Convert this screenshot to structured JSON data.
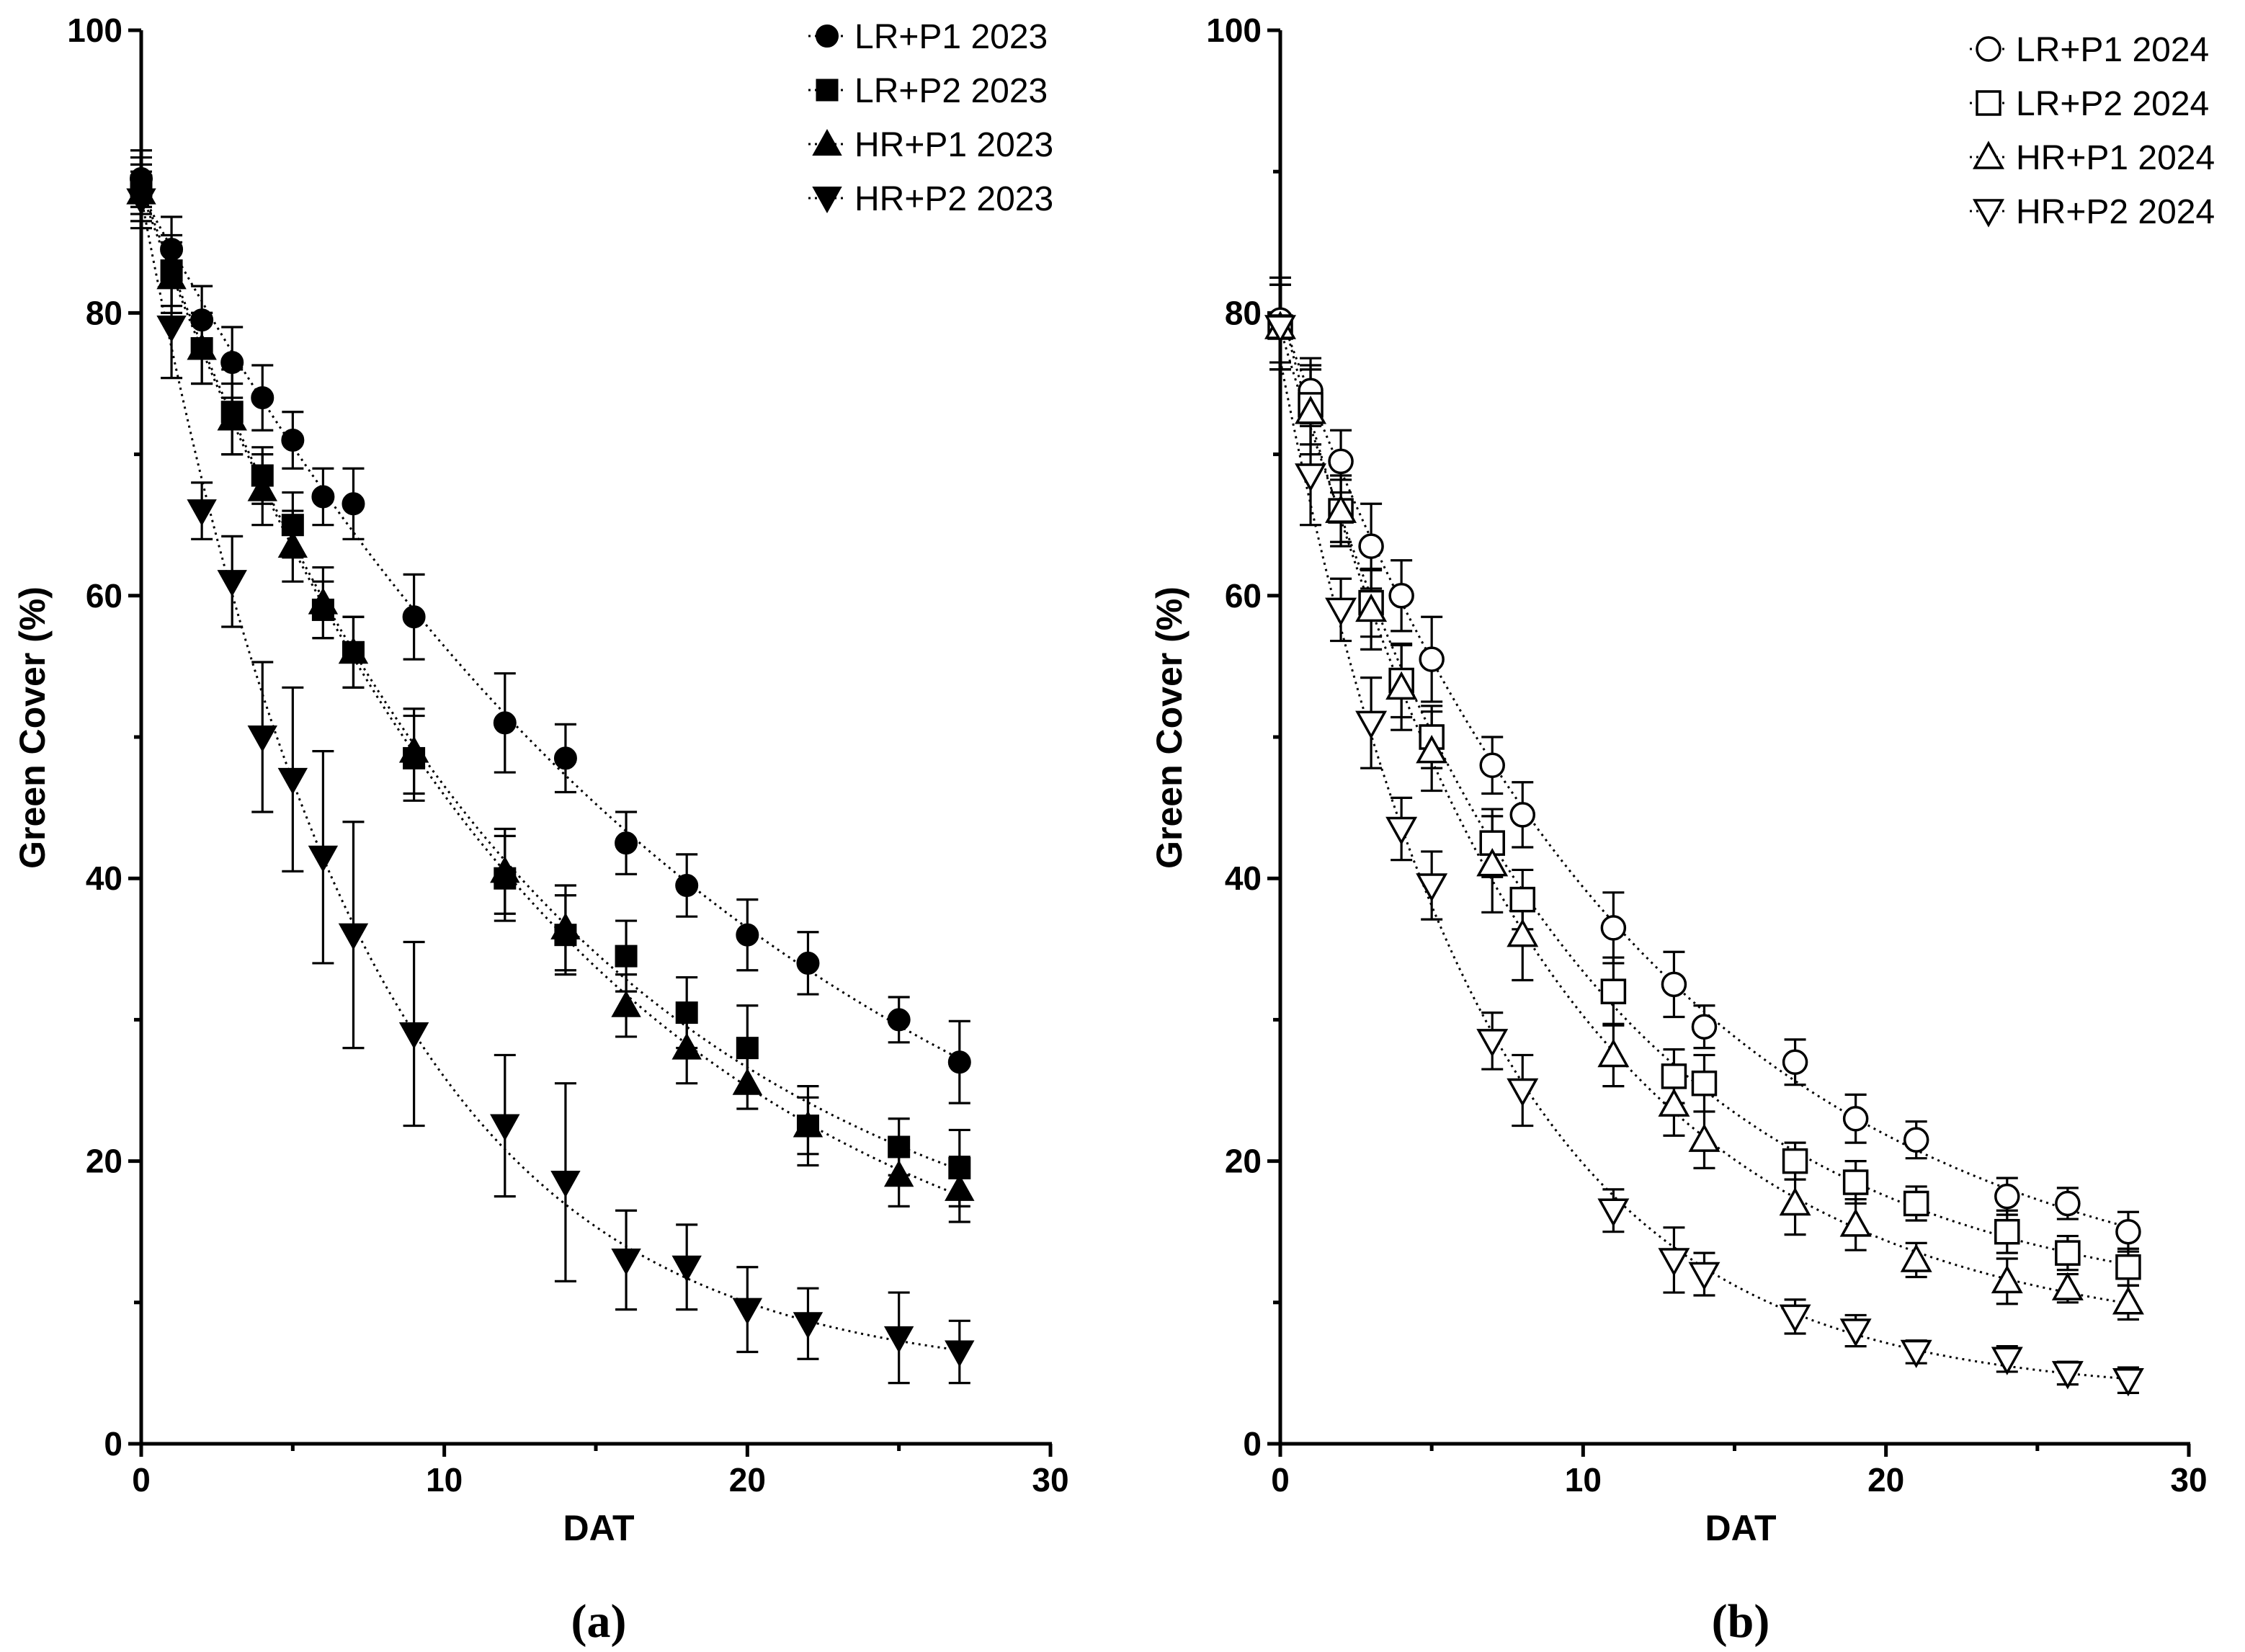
{
  "chart_data": [
    {
      "type": "scatter",
      "panel_label": "(a)",
      "xlabel": "DAT",
      "ylabel": "Green Cover (%)",
      "xlim": [
        0,
        30
      ],
      "ylim": [
        0,
        100
      ],
      "xticks": [
        "0",
        "10",
        "20",
        "30"
      ],
      "yticks": [
        "0",
        "20",
        "40",
        "60",
        "80",
        "100"
      ],
      "legend_position": "top-right",
      "fit_lines": "dotted",
      "series": [
        {
          "name": "LR+P1 2023",
          "marker": "circle",
          "filled": true,
          "x": [
            0,
            1,
            2,
            3,
            4,
            5,
            6,
            7,
            9,
            12,
            14,
            16,
            18,
            20,
            22,
            25,
            27
          ],
          "y": [
            89.5,
            84.5,
            79.5,
            76.5,
            74,
            71,
            67,
            66.5,
            58.5,
            51,
            48.5,
            42.5,
            39.5,
            36,
            34,
            30,
            27
          ],
          "err": [
            2,
            2.3,
            2.4,
            2.5,
            2.3,
            2,
            2,
            2.5,
            3,
            3.5,
            2.4,
            2.2,
            2.2,
            2.5,
            2.2,
            1.6,
            2.9
          ]
        },
        {
          "name": "LR+P2 2023",
          "marker": "square",
          "filled": true,
          "x": [
            0,
            1,
            2,
            3,
            4,
            5,
            6,
            7,
            9,
            12,
            14,
            16,
            18,
            20,
            22,
            25,
            27
          ],
          "y": [
            89,
            83,
            77.5,
            73,
            68.5,
            65,
            59,
            56,
            48.5,
            40,
            36,
            34.5,
            30.5,
            28,
            22.5,
            21,
            19.5
          ],
          "err": [
            2,
            2.5,
            2.5,
            3,
            2,
            2.3,
            2,
            2.5,
            3,
            3,
            2.8,
            2.5,
            2.5,
            3,
            2.8,
            2,
            2.7
          ]
        },
        {
          "name": "HR+P1 2023",
          "marker": "triangle-up",
          "filled": true,
          "x": [
            0,
            1,
            2,
            3,
            4,
            5,
            6,
            7,
            9,
            12,
            14,
            16,
            18,
            20,
            22,
            25,
            27
          ],
          "y": [
            88.5,
            82.5,
            77.5,
            72.5,
            67.5,
            63.5,
            59.5,
            56,
            49,
            40.5,
            36.5,
            31,
            28,
            25.5,
            22.5,
            19,
            18
          ],
          "err": [
            2,
            2.5,
            2.5,
            2.5,
            2.5,
            2.5,
            2.5,
            2.5,
            3,
            3,
            3,
            2.2,
            2.5,
            1.8,
            2,
            2.2,
            2.3
          ]
        },
        {
          "name": "HR+P2 2023",
          "marker": "triangle-down",
          "filled": true,
          "x": [
            0,
            1,
            2,
            3,
            4,
            5,
            6,
            7,
            9,
            12,
            14,
            16,
            18,
            20,
            22,
            25,
            27
          ],
          "y": [
            88,
            79,
            66,
            61,
            50,
            47,
            41.5,
            36,
            29,
            22.5,
            18.5,
            13,
            12.5,
            9.5,
            8.5,
            7.5,
            6.5
          ],
          "err": [
            2,
            3.6,
            2,
            3.2,
            5.3,
            6.5,
            7.5,
            8,
            6.5,
            5,
            7,
            3.5,
            3,
            3,
            2.5,
            3.2,
            2.2
          ]
        }
      ]
    },
    {
      "type": "scatter",
      "panel_label": "(b)",
      "xlabel": "DAT",
      "ylabel": "Green Cover (%)",
      "xlim": [
        0,
        30
      ],
      "ylim": [
        0,
        100
      ],
      "xticks": [
        "0",
        "10",
        "20",
        "30"
      ],
      "yticks": [
        "0",
        "20",
        "40",
        "60",
        "80",
        "100"
      ],
      "legend_position": "top-right",
      "fit_lines": "dotted",
      "series": [
        {
          "name": "LR+P1 2024",
          "marker": "circle",
          "filled": false,
          "x": [
            0,
            1,
            2,
            3,
            4,
            5,
            7,
            8,
            11,
            13,
            14,
            17,
            19,
            21,
            24,
            26,
            28
          ],
          "y": [
            79.5,
            74.5,
            69.5,
            63.5,
            60,
            55.5,
            48,
            44.5,
            36.5,
            32.5,
            29.5,
            27,
            23,
            21.5,
            17.5,
            17,
            15
          ],
          "err": [
            3,
            2.3,
            2.2,
            3,
            2.5,
            3,
            2,
            2.3,
            2.5,
            2.3,
            1.5,
            1.6,
            1.7,
            1.3,
            1.3,
            1.1,
            1.4
          ]
        },
        {
          "name": "LR+P2 2024",
          "marker": "square",
          "filled": false,
          "x": [
            0,
            1,
            2,
            3,
            4,
            5,
            7,
            8,
            11,
            13,
            14,
            17,
            19,
            21,
            24,
            26,
            28
          ],
          "y": [
            79,
            73.5,
            66,
            59.5,
            54,
            50,
            42.5,
            38.5,
            32,
            26,
            25.5,
            20,
            18.5,
            17,
            15,
            13.5,
            12.5
          ],
          "err": [
            3,
            2.8,
            2.2,
            2.4,
            2.6,
            2.2,
            2.4,
            2.1,
            2.4,
            1.9,
            2,
            1.3,
            1.5,
            1.2,
            1.5,
            1.2,
            1.3
          ]
        },
        {
          "name": "HR+P1 2024",
          "marker": "triangle-up",
          "filled": false,
          "x": [
            0,
            1,
            2,
            3,
            4,
            5,
            7,
            8,
            11,
            13,
            14,
            17,
            19,
            21,
            24,
            26,
            28
          ],
          "y": [
            79,
            73,
            66,
            59,
            53.5,
            49,
            41,
            36,
            27.5,
            24,
            21.5,
            17,
            15.5,
            13,
            11.5,
            11,
            10
          ],
          "err": [
            3,
            3,
            2.5,
            2.8,
            3,
            2.8,
            3.4,
            3.2,
            2.2,
            2.2,
            2,
            2.2,
            1.8,
            1.2,
            1.6,
            1,
            1.2
          ]
        },
        {
          "name": "HR+P2 2024",
          "marker": "triangle-down",
          "filled": false,
          "x": [
            0,
            1,
            2,
            3,
            4,
            5,
            7,
            8,
            11,
            13,
            14,
            17,
            19,
            21,
            24,
            26,
            28
          ],
          "y": [
            79,
            68.5,
            59,
            51,
            43.5,
            39.5,
            28.5,
            25,
            16.5,
            13,
            12,
            9,
            8,
            6.5,
            6,
            5,
            4.5
          ],
          "err": [
            3,
            3.5,
            2.2,
            3.2,
            2.2,
            2.4,
            2,
            2.5,
            1.5,
            2.3,
            1.5,
            1.2,
            1.1,
            0.8,
            0.9,
            0.8,
            0.9
          ]
        }
      ]
    }
  ]
}
